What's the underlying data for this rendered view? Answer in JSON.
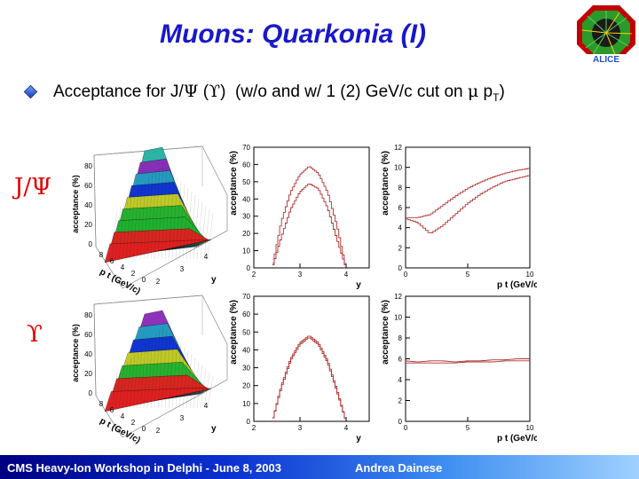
{
  "slide": {
    "title": "Muons: Quarkonia (I)",
    "subtitle_parts": {
      "pre": "Acceptance for J/",
      "psi": "Ψ",
      "mid1": " (",
      "upsilon": "ϒ",
      "mid2": ")  (w/o and w/ 1 (2) GeV/c cut on ",
      "mu": "μ",
      "post": " p",
      "subT": "T",
      "end": ")"
    },
    "row_labels": {
      "jpsi": "J/Ψ",
      "upsilon": "ϒ"
    },
    "footer_left": "CMS Heavy-Ion Workshop in Delphi - June 8, 2003",
    "footer_right": "Andrea Dainese",
    "logo_text": "ALICE"
  },
  "colors": {
    "title": "#1818c8",
    "row_label": "#e00000",
    "hist": "#b03030"
  },
  "surface_labels": {
    "z_label": "acceptance (%)",
    "x_label": "p t (GeV/c)",
    "y_label": "y",
    "z_ticks": [
      "0",
      "20",
      "40",
      "60",
      "80"
    ],
    "x_ticks": [
      "8",
      "6",
      "4",
      "2",
      "0"
    ],
    "y_ticks": [
      "2",
      "3",
      "4"
    ]
  },
  "chart_data": [
    {
      "type": "line",
      "panel": "jpsi-vs-y",
      "xlabel": "y",
      "ylabel": "acceptance (%)",
      "xlim": [
        2,
        4.5
      ],
      "ylim": [
        0,
        70
      ],
      "xticks": [
        "2",
        "3",
        "4"
      ],
      "yticks": [
        "0",
        "10",
        "20",
        "30",
        "40",
        "50",
        "60",
        "70"
      ],
      "series": [
        {
          "x": [
            2.4,
            2.6,
            2.8,
            3.0,
            3.2,
            3.4,
            3.6,
            3.8,
            4.0
          ],
          "y": [
            0,
            27,
            44,
            54,
            59,
            55,
            44,
            25,
            0
          ]
        },
        {
          "x": [
            2.4,
            2.6,
            2.8,
            3.0,
            3.2,
            3.4,
            3.6,
            3.8,
            4.0
          ],
          "y": [
            0,
            18,
            34,
            44,
            49,
            46,
            35,
            17,
            0
          ]
        }
      ]
    },
    {
      "type": "line",
      "panel": "jpsi-vs-pt",
      "xlabel": "p t (GeV/c)",
      "ylabel": "acceptance (%)",
      "xlim": [
        0,
        10
      ],
      "ylim": [
        0,
        12
      ],
      "xticks": [
        "0",
        "5",
        "10"
      ],
      "yticks": [
        "0",
        "2",
        "4",
        "6",
        "8",
        "10",
        "12"
      ],
      "series": [
        {
          "x": [
            0,
            1,
            2,
            3,
            4,
            5,
            6,
            7,
            8,
            9,
            10
          ],
          "y": [
            5.0,
            5.0,
            5.3,
            6.2,
            7.1,
            7.9,
            8.5,
            9.0,
            9.4,
            9.7,
            9.9
          ]
        },
        {
          "x": [
            0,
            1,
            2,
            3,
            4,
            5,
            6,
            7,
            8,
            9,
            10
          ],
          "y": [
            4.9,
            4.5,
            3.4,
            4.2,
            5.3,
            6.4,
            7.3,
            8.0,
            8.6,
            8.9,
            9.2
          ]
        }
      ]
    },
    {
      "type": "line",
      "panel": "upsilon-vs-y",
      "xlabel": "y",
      "ylabel": "acceptance (%)",
      "xlim": [
        2,
        4.5
      ],
      "ylim": [
        0,
        70
      ],
      "xticks": [
        "2",
        "3",
        "4"
      ],
      "yticks": [
        "0",
        "10",
        "20",
        "30",
        "40",
        "50",
        "60",
        "70"
      ],
      "series": [
        {
          "x": [
            2.4,
            2.6,
            2.8,
            3.0,
            3.2,
            3.4,
            3.6,
            3.8,
            4.0
          ],
          "y": [
            0,
            20,
            35,
            44,
            48,
            44,
            34,
            18,
            0
          ]
        },
        {
          "x": [
            2.4,
            2.6,
            2.8,
            3.0,
            3.2,
            3.4,
            3.6,
            3.8,
            4.0
          ],
          "y": [
            0,
            19,
            34,
            43,
            47,
            43,
            33,
            17,
            0
          ]
        }
      ]
    },
    {
      "type": "line",
      "panel": "upsilon-vs-pt",
      "xlabel": "p t (GeV/c)",
      "ylabel": "acceptance (%)",
      "xlim": [
        0,
        10
      ],
      "ylim": [
        0,
        12
      ],
      "xticks": [
        "0",
        "5",
        "10"
      ],
      "yticks": [
        "0",
        "2",
        "4",
        "6",
        "8",
        "10",
        "12"
      ],
      "series": [
        {
          "x": [
            0,
            1,
            2,
            3,
            4,
            5,
            6,
            7,
            8,
            9,
            10
          ],
          "y": [
            5.8,
            5.7,
            5.8,
            5.8,
            5.7,
            5.8,
            5.8,
            5.9,
            5.9,
            6.0,
            6.0
          ]
        },
        {
          "x": [
            0,
            1,
            2,
            3,
            4,
            5,
            6,
            7,
            8,
            9,
            10
          ],
          "y": [
            5.6,
            5.6,
            5.6,
            5.6,
            5.6,
            5.7,
            5.7,
            5.7,
            5.8,
            5.8,
            5.8
          ]
        }
      ]
    }
  ]
}
